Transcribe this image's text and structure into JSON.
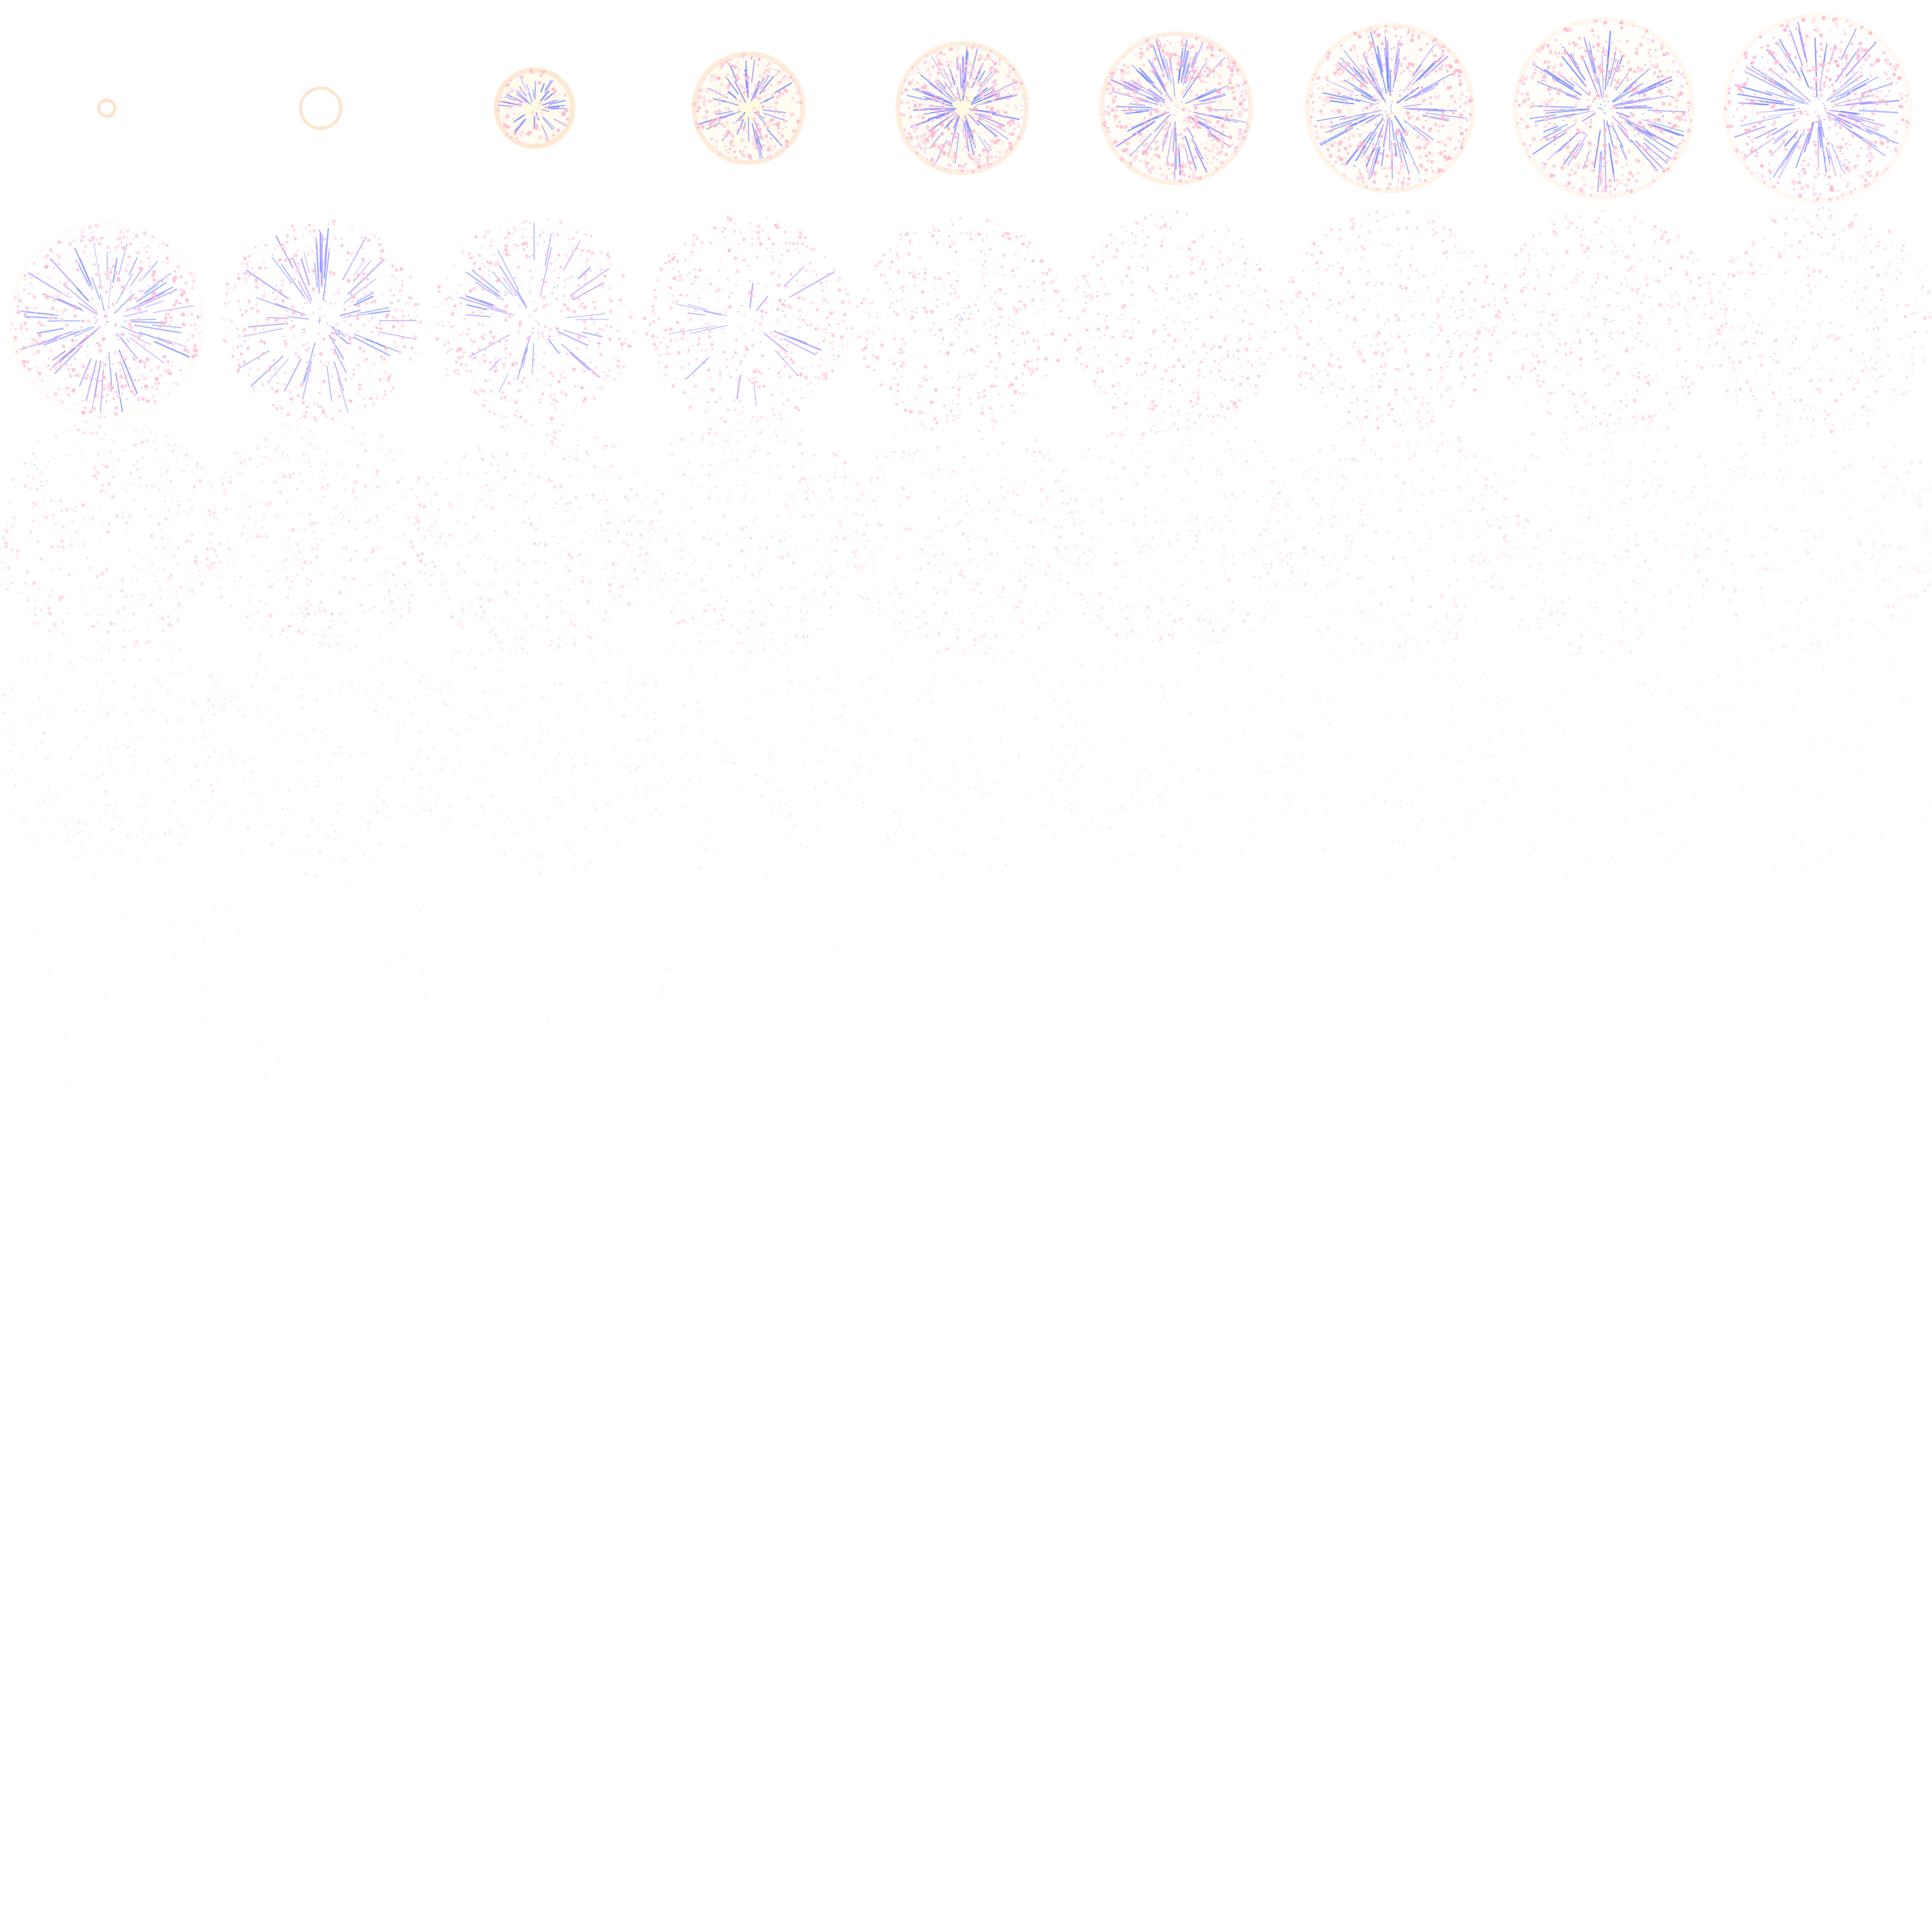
{
  "sprite_sheet": {
    "grid_columns": 9,
    "grid_rows": 9,
    "frame_count": 45,
    "background_color": "#ffffff",
    "colors": {
      "ring": "#fde0c2",
      "ring_glow": "#fff2c4",
      "core": "#fffbe0",
      "streak_blue": "#6f86ff",
      "streak_violet": "#a58cff",
      "spark_pink": "#ffb8cf",
      "spark_light_pink": "#ffd6e2"
    },
    "frames": [
      {
        "phase": "ignite",
        "burst_level": 0.04,
        "opacity": 1.0,
        "density": 0.0
      },
      {
        "phase": "ignite",
        "burst_level": 0.1,
        "opacity": 1.0,
        "density": 0.0
      },
      {
        "phase": "flash",
        "burst_level": 0.19,
        "opacity": 1.0,
        "density": 0.15
      },
      {
        "phase": "flash",
        "burst_level": 0.27,
        "opacity": 1.0,
        "density": 0.55
      },
      {
        "phase": "expand",
        "burst_level": 0.32,
        "opacity": 1.0,
        "density": 0.85
      },
      {
        "phase": "expand",
        "burst_level": 0.37,
        "opacity": 1.0,
        "density": 1.0
      },
      {
        "phase": "expand",
        "burst_level": 0.41,
        "opacity": 1.0,
        "density": 1.0
      },
      {
        "phase": "expand",
        "burst_level": 0.44,
        "opacity": 1.0,
        "density": 1.0
      },
      {
        "phase": "expand",
        "burst_level": 0.46,
        "opacity": 0.98,
        "density": 1.0
      },
      {
        "phase": "scatter",
        "burst_level": 0.48,
        "opacity": 0.92,
        "density": 0.95
      },
      {
        "phase": "scatter",
        "burst_level": 0.5,
        "opacity": 0.88,
        "density": 0.92
      },
      {
        "phase": "scatter",
        "burst_level": 0.51,
        "opacity": 0.85,
        "density": 0.9
      },
      {
        "phase": "scatter",
        "burst_level": 0.52,
        "opacity": 0.82,
        "density": 0.88
      },
      {
        "phase": "scatter",
        "burst_level": 0.53,
        "opacity": 0.78,
        "density": 0.85
      },
      {
        "phase": "scatter",
        "burst_level": 0.54,
        "opacity": 0.74,
        "density": 0.82
      },
      {
        "phase": "scatter",
        "burst_level": 0.55,
        "opacity": 0.7,
        "density": 0.8
      },
      {
        "phase": "scatter",
        "burst_level": 0.56,
        "opacity": 0.66,
        "density": 0.78
      },
      {
        "phase": "scatter",
        "burst_level": 0.57,
        "opacity": 0.62,
        "density": 0.75
      },
      {
        "phase": "fade",
        "burst_level": 0.58,
        "opacity": 0.58,
        "density": 0.72
      },
      {
        "phase": "fade",
        "burst_level": 0.59,
        "opacity": 0.55,
        "density": 0.7
      },
      {
        "phase": "fade",
        "burst_level": 0.595,
        "opacity": 0.52,
        "density": 0.68
      },
      {
        "phase": "fade",
        "burst_level": 0.6,
        "opacity": 0.49,
        "density": 0.65
      },
      {
        "phase": "fade",
        "burst_level": 0.605,
        "opacity": 0.46,
        "density": 0.62
      },
      {
        "phase": "fade",
        "burst_level": 0.61,
        "opacity": 0.43,
        "density": 0.6
      },
      {
        "phase": "fade",
        "burst_level": 0.615,
        "opacity": 0.4,
        "density": 0.58
      },
      {
        "phase": "fade",
        "burst_level": 0.62,
        "opacity": 0.37,
        "density": 0.55
      },
      {
        "phase": "fade",
        "burst_level": 0.625,
        "opacity": 0.34,
        "density": 0.52
      },
      {
        "phase": "fade",
        "burst_level": 0.63,
        "opacity": 0.31,
        "density": 0.5
      },
      {
        "phase": "fade",
        "burst_level": 0.635,
        "opacity": 0.28,
        "density": 0.48
      },
      {
        "phase": "fade",
        "burst_level": 0.64,
        "opacity": 0.26,
        "density": 0.45
      },
      {
        "phase": "fade",
        "burst_level": 0.645,
        "opacity": 0.24,
        "density": 0.42
      },
      {
        "phase": "fade",
        "burst_level": 0.65,
        "opacity": 0.22,
        "density": 0.4
      },
      {
        "phase": "fade",
        "burst_level": 0.655,
        "opacity": 0.2,
        "density": 0.38
      },
      {
        "phase": "fade",
        "burst_level": 0.66,
        "opacity": 0.18,
        "density": 0.35
      },
      {
        "phase": "fade",
        "burst_level": 0.665,
        "opacity": 0.16,
        "density": 0.33
      },
      {
        "phase": "fade",
        "burst_level": 0.67,
        "opacity": 0.14,
        "density": 0.3
      },
      {
        "phase": "dissipate",
        "burst_level": 0.675,
        "opacity": 0.12,
        "density": 0.28
      },
      {
        "phase": "dissipate",
        "burst_level": 0.68,
        "opacity": 0.1,
        "density": 0.25
      },
      {
        "phase": "dissipate",
        "burst_level": 0.685,
        "opacity": 0.09,
        "density": 0.22
      },
      {
        "phase": "dissipate",
        "burst_level": 0.69,
        "opacity": 0.08,
        "density": 0.2
      },
      {
        "phase": "dissipate",
        "burst_level": 0.695,
        "opacity": 0.07,
        "density": 0.18
      },
      {
        "phase": "dissipate",
        "burst_level": 0.7,
        "opacity": 0.06,
        "density": 0.15
      },
      {
        "phase": "dissipate",
        "burst_level": 0.705,
        "opacity": 0.05,
        "density": 0.12
      },
      {
        "phase": "dissipate",
        "burst_level": 0.71,
        "opacity": 0.04,
        "density": 0.1
      },
      {
        "phase": "dissipate",
        "burst_level": 0.715,
        "opacity": 0.03,
        "density": 0.08
      }
    ]
  }
}
